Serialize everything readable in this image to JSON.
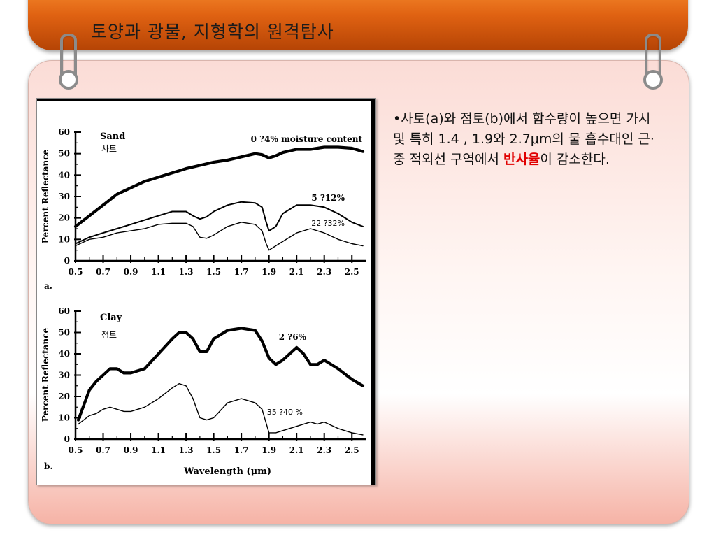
{
  "slide": {
    "title": "토양과 광물, 지형학의 원격탐사",
    "bullet": {
      "marker": "•",
      "text_before": "사토(a)와 점토(b)에서 함수량이 높으면 가시 및 특히 1.4 , 1.9와 2.7μm의 물 흡수대인 근·중 적외선 구역에서 ",
      "highlight": "반사율",
      "text_after": "이 감소한다.",
      "highlight_color": "#e00000"
    }
  },
  "chart_data": [
    {
      "type": "line",
      "panel_label": "a.",
      "title": "Sand",
      "title_ko": "사토",
      "xlabel": "",
      "ylabel": "Percent Reflectance",
      "xlim": [
        0.5,
        2.6
      ],
      "ylim": [
        0,
        60
      ],
      "xticks": [
        0.5,
        0.7,
        0.9,
        1.1,
        1.3,
        1.5,
        1.7,
        1.9,
        2.1,
        2.3,
        2.5
      ],
      "yticks": [
        0,
        10,
        20,
        30,
        40,
        50,
        60
      ],
      "series": [
        {
          "name": "0 ?4% moisture content",
          "weight": "heavy",
          "x": [
            0.5,
            0.6,
            0.7,
            0.8,
            0.9,
            1.0,
            1.1,
            1.2,
            1.3,
            1.4,
            1.5,
            1.6,
            1.7,
            1.8,
            1.85,
            1.9,
            1.95,
            2.0,
            2.1,
            2.2,
            2.3,
            2.4,
            2.5,
            2.58
          ],
          "y": [
            16,
            21,
            26,
            31,
            34,
            37,
            39,
            41,
            43,
            44.5,
            46,
            47,
            48.5,
            50,
            49.5,
            48,
            49,
            50.5,
            52,
            52,
            53,
            53,
            52.5,
            51
          ]
        },
        {
          "name": "5 ?12%",
          "weight": "medium",
          "x": [
            0.5,
            0.6,
            0.7,
            0.8,
            0.9,
            1.0,
            1.1,
            1.2,
            1.3,
            1.35,
            1.4,
            1.45,
            1.5,
            1.6,
            1.7,
            1.8,
            1.85,
            1.88,
            1.9,
            1.95,
            2.0,
            2.1,
            2.2,
            2.3,
            2.4,
            2.5,
            2.58
          ],
          "y": [
            8,
            11,
            13,
            15,
            17,
            19,
            21,
            23,
            23,
            21,
            19.5,
            20.5,
            23,
            26,
            27.5,
            27,
            25,
            18,
            14,
            16,
            22,
            26,
            26,
            25,
            22,
            18,
            16
          ]
        },
        {
          "name": "22 ?32%",
          "weight": "light",
          "x": [
            0.5,
            0.6,
            0.7,
            0.8,
            0.9,
            1.0,
            1.1,
            1.2,
            1.3,
            1.35,
            1.4,
            1.45,
            1.5,
            1.6,
            1.7,
            1.8,
            1.85,
            1.88,
            1.9,
            1.95,
            2.0,
            2.1,
            2.2,
            2.3,
            2.4,
            2.5,
            2.58
          ],
          "y": [
            7,
            10,
            11,
            13,
            14,
            15,
            17,
            17.5,
            17.5,
            16,
            11,
            10.5,
            12,
            16,
            18,
            17,
            14,
            8,
            5,
            7,
            9,
            13,
            15,
            13,
            10,
            8,
            7
          ]
        }
      ]
    },
    {
      "type": "line",
      "panel_label": "b.",
      "title": "Clay",
      "title_ko": "점토",
      "xlabel": "Wavelength (μm)",
      "ylabel": "Percent Reflectance",
      "xlim": [
        0.5,
        2.6
      ],
      "ylim": [
        0,
        60
      ],
      "xticks": [
        0.5,
        0.7,
        0.9,
        1.1,
        1.3,
        1.5,
        1.7,
        1.9,
        2.1,
        2.3,
        2.5
      ],
      "yticks": [
        0,
        10,
        20,
        30,
        40,
        50,
        60
      ],
      "series": [
        {
          "name": "2 ?6%",
          "weight": "heavy",
          "x": [
            0.52,
            0.6,
            0.65,
            0.7,
            0.75,
            0.8,
            0.85,
            0.9,
            1.0,
            1.1,
            1.2,
            1.25,
            1.3,
            1.35,
            1.4,
            1.45,
            1.5,
            1.6,
            1.7,
            1.8,
            1.85,
            1.9,
            1.95,
            2.0,
            2.1,
            2.15,
            2.2,
            2.25,
            2.3,
            2.4,
            2.5,
            2.58
          ],
          "y": [
            9,
            23,
            27,
            30,
            33,
            33,
            31,
            31,
            33,
            40,
            47,
            50,
            50,
            47,
            41,
            41,
            47,
            51,
            52,
            51,
            46,
            38,
            35,
            37,
            43,
            40,
            35,
            35,
            37,
            33,
            28,
            25
          ]
        },
        {
          "name": "35 ?40 %",
          "weight": "light",
          "x": [
            0.52,
            0.6,
            0.65,
            0.7,
            0.75,
            0.8,
            0.85,
            0.9,
            1.0,
            1.1,
            1.2,
            1.25,
            1.3,
            1.35,
            1.4,
            1.45,
            1.5,
            1.6,
            1.7,
            1.8,
            1.85,
            1.9,
            1.95,
            2.0,
            2.1,
            2.2,
            2.25,
            2.3,
            2.4,
            2.5,
            2.58
          ],
          "y": [
            7,
            11,
            12,
            14,
            15,
            14,
            13,
            13,
            15,
            19,
            24,
            26,
            25,
            19,
            10,
            9,
            10,
            17,
            19,
            17,
            14,
            3,
            3,
            4,
            6,
            8,
            7,
            8,
            5,
            3,
            2
          ]
        }
      ]
    }
  ]
}
